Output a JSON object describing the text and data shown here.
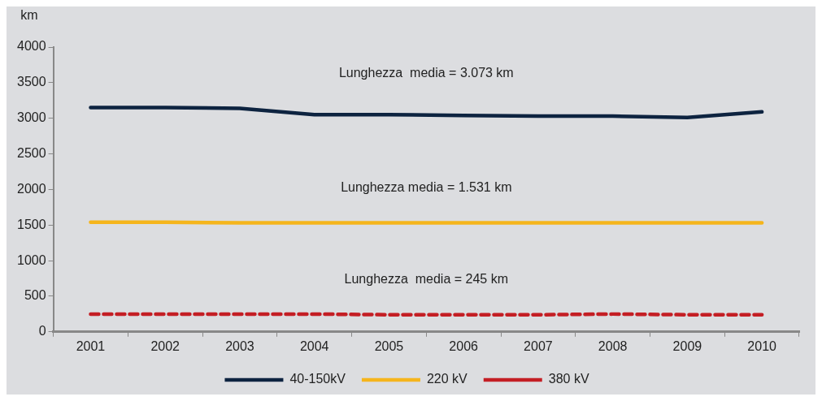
{
  "chart_data": {
    "type": "line",
    "ylabel": "km",
    "categories": [
      "2001",
      "2002",
      "2003",
      "2004",
      "2005",
      "2006",
      "2007",
      "2008",
      "2009",
      "2010"
    ],
    "series": [
      {
        "name": "40-150kV",
        "color": "#0d2340",
        "values": [
          3150,
          3150,
          3140,
          3050,
          3050,
          3040,
          3030,
          3030,
          3010,
          3090
        ]
      },
      {
        "name": "220 kV",
        "color": "#f5b51c",
        "values": [
          1540,
          1540,
          1530,
          1530,
          1530,
          1530,
          1530,
          1530,
          1530,
          1530
        ]
      },
      {
        "name": "380 kV",
        "color": "#c41e24",
        "line_style": "dashed",
        "values": [
          250,
          250,
          250,
          250,
          240,
          240,
          240,
          250,
          240,
          240
        ]
      }
    ],
    "ylim": [
      0,
      4000
    ],
    "yticks": [
      0,
      500,
      1000,
      1500,
      2000,
      2500,
      3000,
      3500,
      4000
    ],
    "grid": false,
    "legend": "bottom",
    "marker": "none",
    "annotations": [
      "Lunghezza  media = 3.073 km",
      "Lunghezza media = 1.531 km",
      "Lunghezza  media = 245 km"
    ]
  }
}
